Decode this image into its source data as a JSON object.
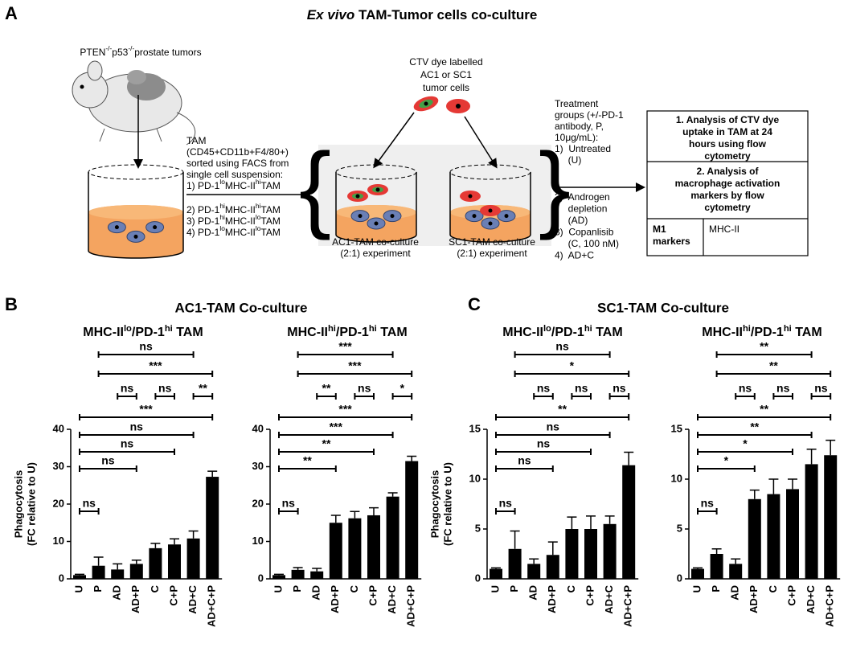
{
  "panel_labels": [
    "A",
    "B",
    "C"
  ],
  "schematic": {
    "title": [
      "Ex vivo",
      " TAM-Tumor cells co-culture"
    ],
    "tumor_label": [
      "PTEN",
      "-/-",
      "p53",
      "-/-",
      "prostate tumors"
    ],
    "tam_lines": [
      "TAM",
      "(CD45+CD11b+F4/80+)",
      "sorted using FACS from",
      "single cell suspension:"
    ],
    "tam_groups": [
      [
        "1) PD-1",
        "lo",
        "MHC-II",
        "hi",
        "TAM"
      ],
      [
        "2) PD-1",
        "hi",
        "MHC-II",
        "hi",
        "TAM"
      ],
      [
        "3) PD-1",
        "hi",
        "MHC-II",
        "lo",
        "TAM"
      ],
      [
        "4) PD-1",
        "lo",
        "MHC-II",
        "lo",
        "TAM"
      ]
    ],
    "dye_lines": [
      "CTV dye labelled",
      "AC1 or SC1",
      "tumor cells"
    ],
    "coculture_labels": [
      [
        "AC1-TAM co-culture",
        "(2:1) experiment"
      ],
      [
        "SC1-TAM co-culture",
        "(2:1) experiment"
      ]
    ],
    "treatment_upper": [
      "Treatment",
      "groups (+/-PD-1",
      "antibody, P,",
      "10μg/mL):",
      "1)  Untreated",
      "     (U)"
    ],
    "treatment_lower": [
      "2)  Androgen",
      "     depletion",
      "     (AD)",
      "3)  Copanlisib",
      "     (C, 100 nM)",
      "4)  AD+C"
    ],
    "analysis_box": {
      "step1": [
        "1. Analysis of CTV dye",
        "uptake in TAM at 24",
        "hours using flow",
        "cytometry"
      ],
      "step2": [
        "2. Analysis of",
        "macrophage activation",
        "markers by flow",
        "cytometry"
      ],
      "marker_type": [
        "M1",
        "markers"
      ],
      "marker": "MHC-II"
    }
  },
  "group_titles": [
    "AC1-TAM Co-culture",
    "SC1-TAM Co-culture"
  ],
  "chart_data": [
    {
      "type": "bar",
      "title": [
        "MHC-II",
        "lo",
        "/PD-1",
        "hi",
        " TAM"
      ],
      "ylabel": [
        "Phagocytosis",
        "(FC relative to U)"
      ],
      "categories": [
        "U",
        "P",
        "AD",
        "AD+P",
        "C",
        "C+P",
        "AD+C",
        "AD+C+P"
      ],
      "values": [
        1,
        3.5,
        2.5,
        4,
        8.2,
        9.2,
        10.8,
        27.3
      ],
      "errors": [
        0.2,
        2.3,
        1.5,
        1,
        1.3,
        1.5,
        2,
        1.5
      ],
      "color": "#000000",
      "ylim": [
        0,
        40
      ],
      "yticks": [
        0,
        10,
        20,
        30,
        40
      ],
      "brackets": [
        {
          "label": "ns",
          "from": "U",
          "to": "P"
        },
        {
          "label": "ns",
          "from": "U",
          "to": "AD+P"
        },
        {
          "label": "ns",
          "from": "U",
          "to": "C+P"
        },
        {
          "label": "ns",
          "from": "U",
          "to": "AD+C"
        },
        {
          "label": "***",
          "from": "U",
          "to": "AD+C+P"
        },
        {
          "label": "ns",
          "from": "AD",
          "to": "AD+P"
        },
        {
          "label": "ns",
          "from": "C",
          "to": "C+P"
        },
        {
          "label": "**",
          "from": "AD+C",
          "to": "AD+C+P"
        },
        {
          "label": "***",
          "from": "P",
          "to": "AD+C+P"
        },
        {
          "label": "ns",
          "from": "P",
          "to": "AD+C"
        }
      ]
    },
    {
      "type": "bar",
      "title": [
        "MHC-II",
        "hi",
        "/PD-1",
        "hi",
        " TAM"
      ],
      "categories": [
        "U",
        "P",
        "AD",
        "AD+P",
        "C",
        "C+P",
        "AD+C",
        "AD+C+P"
      ],
      "values": [
        1,
        2.4,
        2,
        15,
        16.2,
        17,
        22,
        31.5
      ],
      "errors": [
        0.2,
        0.6,
        0.8,
        2,
        1.8,
        2,
        1,
        1.3
      ],
      "color": "#000000",
      "ylim": [
        0,
        40
      ],
      "yticks": [
        0,
        10,
        20,
        30,
        40
      ],
      "brackets": [
        {
          "label": "ns",
          "from": "U",
          "to": "P"
        },
        {
          "label": "**",
          "from": "U",
          "to": "AD+P"
        },
        {
          "label": "**",
          "from": "U",
          "to": "C+P"
        },
        {
          "label": "***",
          "from": "U",
          "to": "AD+C"
        },
        {
          "label": "***",
          "from": "U",
          "to": "AD+C+P"
        },
        {
          "label": "**",
          "from": "AD",
          "to": "AD+P"
        },
        {
          "label": "ns",
          "from": "C",
          "to": "C+P"
        },
        {
          "label": "*",
          "from": "AD+C",
          "to": "AD+C+P"
        },
        {
          "label": "***",
          "from": "P",
          "to": "AD+C+P"
        },
        {
          "label": "***",
          "from": "P",
          "to": "AD+C"
        }
      ]
    },
    {
      "type": "bar",
      "title": [
        "MHC-II",
        "lo",
        "/PD-1",
        "hi",
        " TAM"
      ],
      "ylabel": [
        "Phagocytosis",
        "(FC relative to U)"
      ],
      "categories": [
        "U",
        "P",
        "AD",
        "AD+P",
        "C",
        "C+P",
        "AD+C",
        "AD+C+P"
      ],
      "values": [
        1,
        3,
        1.5,
        2.4,
        5,
        5,
        5.5,
        11.4
      ],
      "errors": [
        0.1,
        1.8,
        0.5,
        1.3,
        1.2,
        1.3,
        0.8,
        1.3
      ],
      "color": "#000000",
      "ylim": [
        0,
        15
      ],
      "yticks": [
        0,
        5,
        10,
        15
      ],
      "brackets": [
        {
          "label": "ns",
          "from": "U",
          "to": "P"
        },
        {
          "label": "ns",
          "from": "U",
          "to": "AD+P"
        },
        {
          "label": "ns",
          "from": "U",
          "to": "C+P"
        },
        {
          "label": "ns",
          "from": "U",
          "to": "AD+C"
        },
        {
          "label": "**",
          "from": "U",
          "to": "AD+C+P"
        },
        {
          "label": "ns",
          "from": "AD",
          "to": "AD+P"
        },
        {
          "label": "ns",
          "from": "C",
          "to": "C+P"
        },
        {
          "label": "ns",
          "from": "AD+C",
          "to": "AD+C+P"
        },
        {
          "label": "*",
          "from": "P",
          "to": "AD+C+P"
        },
        {
          "label": "ns",
          "from": "P",
          "to": "AD+C"
        }
      ]
    },
    {
      "type": "bar",
      "title": [
        "MHC-II",
        "hi",
        "/PD-1",
        "hi",
        " TAM"
      ],
      "categories": [
        "U",
        "P",
        "AD",
        "AD+P",
        "C",
        "C+P",
        "AD+C",
        "AD+C+P"
      ],
      "values": [
        1,
        2.5,
        1.5,
        8,
        8.5,
        9,
        11.5,
        12.4
      ],
      "errors": [
        0.1,
        0.5,
        0.5,
        0.9,
        1.5,
        1,
        1.5,
        1.5
      ],
      "color": "#000000",
      "ylim": [
        0,
        15
      ],
      "yticks": [
        0,
        5,
        10,
        15
      ],
      "brackets": [
        {
          "label": "ns",
          "from": "U",
          "to": "P"
        },
        {
          "label": "*",
          "from": "U",
          "to": "AD+P"
        },
        {
          "label": "*",
          "from": "U",
          "to": "C+P"
        },
        {
          "label": "**",
          "from": "U",
          "to": "AD+C"
        },
        {
          "label": "**",
          "from": "U",
          "to": "AD+C+P"
        },
        {
          "label": "ns",
          "from": "AD",
          "to": "AD+P"
        },
        {
          "label": "ns",
          "from": "C",
          "to": "C+P"
        },
        {
          "label": "ns",
          "from": "AD+C",
          "to": "AD+C+P"
        },
        {
          "label": "**",
          "from": "P",
          "to": "AD+C+P"
        },
        {
          "label": "**",
          "from": "P",
          "to": "AD+C"
        }
      ]
    }
  ]
}
